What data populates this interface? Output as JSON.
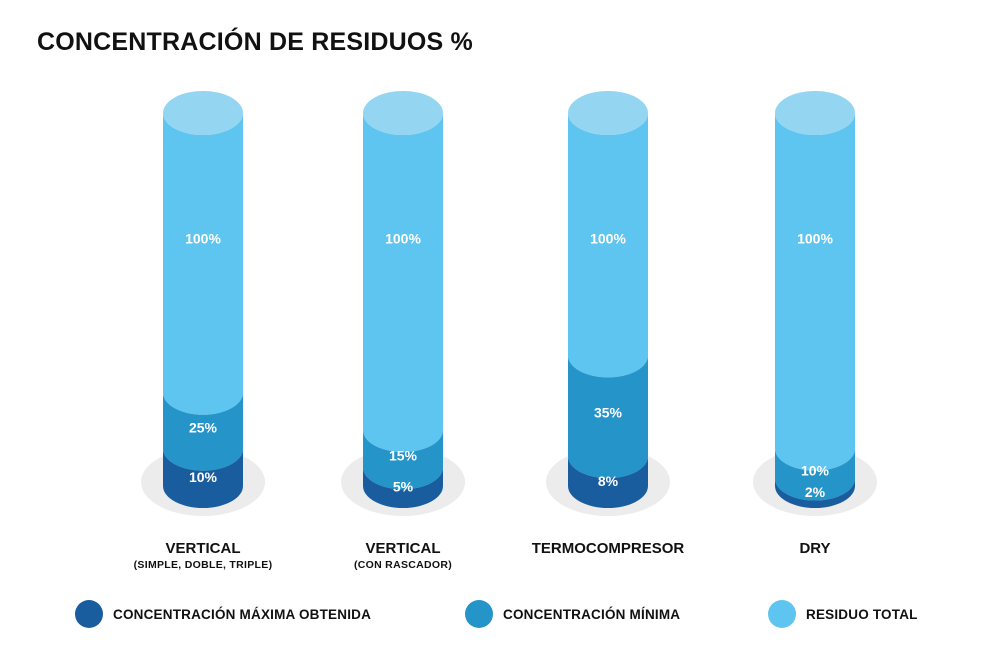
{
  "chart_data": {
    "type": "bar",
    "title": "CONCENTRACIÓN DE RESIDUOS %",
    "categories": [
      {
        "name": "VERTICAL",
        "subtitle": "(SIMPLE, DOBLE, TRIPLE)"
      },
      {
        "name": "VERTICAL",
        "subtitle": "(CON RASCADOR)"
      },
      {
        "name": "TERMOCOMPRESOR",
        "subtitle": ""
      },
      {
        "name": "DRY",
        "subtitle": ""
      }
    ],
    "series": [
      {
        "name": "CONCENTRACIÓN MÁXIMA OBTENIDA",
        "values": [
          10,
          5,
          8,
          2
        ],
        "labels": [
          "10%",
          "5%",
          "8%",
          "2%"
        ],
        "color": "#1a5d9e"
      },
      {
        "name": "CONCENTRACIÓN MÍNIMA",
        "values": [
          25,
          15,
          35,
          10
        ],
        "labels": [
          "25%",
          "15%",
          "35%",
          "10%"
        ],
        "color": "#2594c8"
      },
      {
        "name": "RESIDUO TOTAL",
        "values": [
          100,
          100,
          100,
          100
        ],
        "labels": [
          "100%",
          "100%",
          "100%",
          "100%"
        ],
        "color": "#5ec4f0"
      }
    ],
    "colors": {
      "top_cap": "#94d5f1",
      "shadow": "#ececec"
    }
  }
}
